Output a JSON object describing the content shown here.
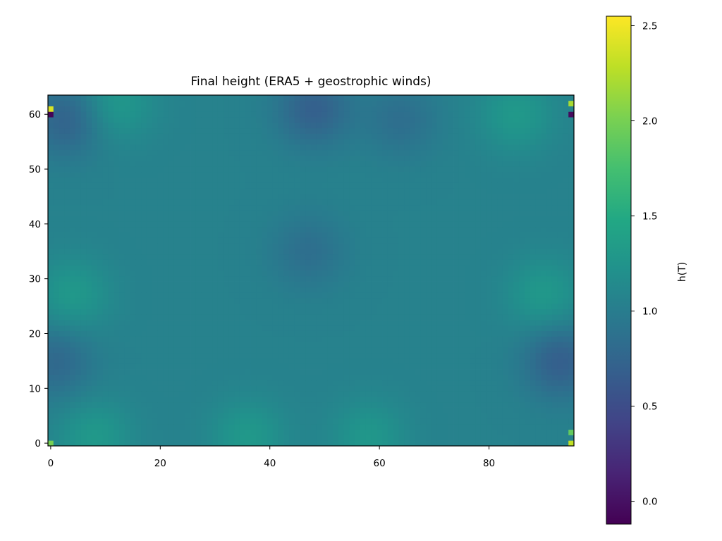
{
  "chart_data": {
    "type": "heatmap",
    "title": "Final height (ERA5 + geostrophic winds)",
    "xlabel": "",
    "ylabel": "",
    "xlim": [
      -0.5,
      95.5
    ],
    "ylim": [
      -0.5,
      63.5
    ],
    "x_ticks": [
      0,
      20,
      40,
      60,
      80
    ],
    "y_ticks": [
      0,
      10,
      20,
      30,
      40,
      50,
      60
    ],
    "grid_shape": [
      64,
      96
    ],
    "origin": "lower",
    "colormap": "viridis",
    "colorbar": {
      "label": "h(T)",
      "vmin": -0.12,
      "vmax": 2.55,
      "ticks": [
        0.0,
        0.5,
        1.0,
        1.5,
        2.0,
        2.5
      ],
      "tick_labels": [
        "0.0",
        "0.5",
        "1.0",
        "1.5",
        "2.0",
        "2.5"
      ]
    },
    "background_value": 1.05,
    "features": [
      {
        "kind": "low",
        "x": 47,
        "y": 35,
        "value": 0.85
      },
      {
        "kind": "low",
        "x": 48,
        "y": 61,
        "value": 0.7
      },
      {
        "kind": "low",
        "x": 64,
        "y": 59,
        "value": 0.85
      },
      {
        "kind": "low",
        "x": 3,
        "y": 59,
        "value": 0.72
      },
      {
        "kind": "low",
        "x": 93,
        "y": 15,
        "value": 0.68
      },
      {
        "kind": "low",
        "x": 1,
        "y": 15,
        "value": 0.78
      },
      {
        "kind": "high",
        "x": 12,
        "y": 62,
        "value": 1.3
      },
      {
        "kind": "high",
        "x": 85,
        "y": 60,
        "value": 1.3
      },
      {
        "kind": "high",
        "x": 36,
        "y": 1,
        "value": 1.3
      },
      {
        "kind": "high",
        "x": 58,
        "y": 1,
        "value": 1.28
      },
      {
        "kind": "high",
        "x": 90,
        "y": 27,
        "value": 1.3
      },
      {
        "kind": "high",
        "x": 4,
        "y": 27,
        "value": 1.3
      },
      {
        "kind": "high",
        "x": 8,
        "y": 1,
        "value": 1.3
      }
    ],
    "corner_extremes": [
      {
        "x": 0,
        "y": 61,
        "value": 2.4
      },
      {
        "x": 0,
        "y": 60,
        "value": -0.1
      },
      {
        "x": 95,
        "y": 62,
        "value": 2.2
      },
      {
        "x": 95,
        "y": 60,
        "value": -0.05
      },
      {
        "x": 0,
        "y": 0,
        "value": 2.0
      },
      {
        "x": 95,
        "y": 0,
        "value": 2.3
      },
      {
        "x": 95,
        "y": 2,
        "value": 1.9
      }
    ]
  }
}
